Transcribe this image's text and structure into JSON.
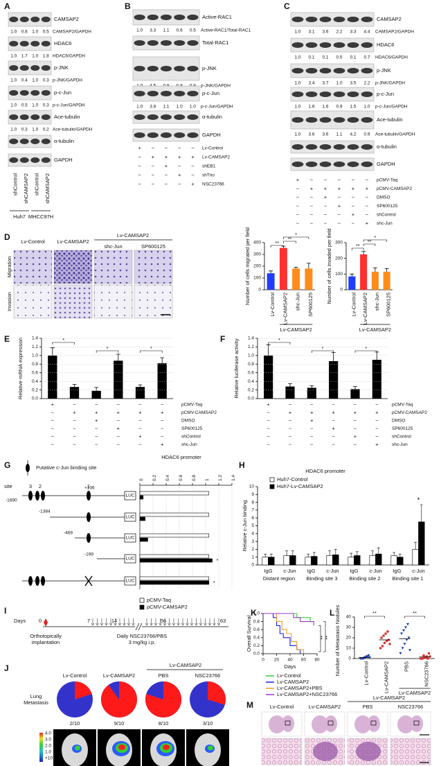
{
  "panels": {
    "A": {
      "letter": "A",
      "blots": [
        {
          "label": "CAMSAP2",
          "quant": [
            "1.0",
            "0.6",
            "1.0",
            "0.5"
          ],
          "ratio": "CAMSAP2/GAPDH"
        },
        {
          "label": "HDAC6",
          "quant": [
            "1.0",
            "1.7",
            "1.0",
            "1.8"
          ],
          "ratio": "HDAC6/GAPDH"
        },
        {
          "label": "p-JNK",
          "quant": [
            "1.0",
            "0.4",
            "1.0",
            "0.3"
          ],
          "ratio": "p-JNK/GAPDH"
        },
        {
          "label": "p-c-Jun",
          "quant": [
            "1.0",
            "0.5",
            "1.0",
            "0.3"
          ],
          "ratio": "p-c-Jun/GAPDH"
        },
        {
          "label": "Ace-tubulin",
          "quant": [
            "1.0",
            "0.3",
            "1.0",
            "0.2"
          ],
          "ratio": "Ace-tubulin/GAPDH"
        },
        {
          "label": "α-tubulin"
        },
        {
          "label": "GAPDH"
        }
      ],
      "lanes": [
        "shControl",
        "shCAMSAP2",
        "shControl",
        "shCAMSAP2"
      ],
      "groups": [
        "Huh7",
        "MHCC97H"
      ]
    },
    "B": {
      "letter": "B",
      "blots": [
        {
          "label": "Active-RAC1",
          "quant": [
            "1.0",
            "3.3",
            "1.1",
            "0.6",
            "0.5"
          ],
          "ratio": "Active-RAC1/Total-RAC1"
        },
        {
          "label": "Total-RAC1"
        },
        {
          "label": "p-JNK",
          "quant": [
            "1.0",
            "4.5",
            "0.9",
            "0.8",
            "0.8"
          ],
          "ratio": "p-JNK/GAPDH"
        },
        {
          "label": "p-c-Jun",
          "quant": [
            "1.0",
            "3.8",
            "1.1",
            "1.0",
            "1.0"
          ],
          "ratio": "p-c-Jun/GAPDH"
        },
        {
          "label": "α-tubulin"
        },
        {
          "label": "GAPDH"
        }
      ],
      "conditions": [
        {
          "label": "Lv-Control",
          "signs": [
            "+",
            "−",
            "−",
            "−",
            "−"
          ]
        },
        {
          "label": "Lv-CAMSAP2",
          "signs": [
            "−",
            "+",
            "+",
            "+",
            "+"
          ]
        },
        {
          "label": "shEB1",
          "signs": [
            "−",
            "−",
            "+",
            "−",
            "−"
          ]
        },
        {
          "label": "shTrio",
          "signs": [
            "−",
            "−",
            "−",
            "+",
            "−"
          ]
        },
        {
          "label": "NSC23766",
          "signs": [
            "−",
            "−",
            "−",
            "−",
            "+"
          ]
        }
      ]
    },
    "C": {
      "letter": "C",
      "blots": [
        {
          "label": "CAMSAP2",
          "quant": [
            "1.0",
            "3.1",
            "3.6",
            "2.2",
            "3.3",
            "4.4"
          ],
          "ratio": "CAMSAP2/GAPDH"
        },
        {
          "label": "HDAC6",
          "quant": [
            "1.0",
            "0.1",
            "0.1",
            "0.5",
            "0.1",
            "0.7"
          ],
          "ratio": "HDAC6/GAPDH"
        },
        {
          "label": "p-JNK",
          "quant": [
            "1.0",
            "3.4",
            "3.7",
            "1.0",
            "3.5",
            "2.2"
          ],
          "ratio": "p-JNK/GAPDH"
        },
        {
          "label": "p-c-Jun",
          "quant": [
            "1.0",
            "1.6",
            "1.6",
            "0.9",
            "1.5",
            "1.0"
          ],
          "ratio": "p-c-Jun/GAPDH"
        },
        {
          "label": "Ace-tubulin",
          "quant": [
            "1.0",
            "3.6",
            "3.6",
            "1.1",
            "4.2",
            "0.9"
          ],
          "ratio": "Ace-tubulin/GAPDH"
        },
        {
          "label": "α-tubulin"
        },
        {
          "label": "GAPDH"
        }
      ],
      "conditions": [
        {
          "label": "pCMV-Taq",
          "signs": [
            "+",
            "−",
            "−",
            "−",
            "−",
            "−"
          ]
        },
        {
          "label": "pCMV-CAMSAP2",
          "signs": [
            "−",
            "+",
            "+",
            "+",
            "+",
            "+"
          ]
        },
        {
          "label": "DMSO",
          "signs": [
            "−",
            "−",
            "+",
            "−",
            "−",
            "−"
          ]
        },
        {
          "label": "SP600125",
          "signs": [
            "−",
            "−",
            "−",
            "+",
            "−",
            "−"
          ]
        },
        {
          "label": "shControl",
          "signs": [
            "−",
            "−",
            "−",
            "−",
            "+",
            "−"
          ]
        },
        {
          "label": "shc-Jun",
          "signs": [
            "−",
            "−",
            "−",
            "−",
            "−",
            "+"
          ]
        }
      ]
    },
    "D": {
      "letter": "D",
      "images": {
        "columns": [
          "Lv-Control",
          "Lv-CAMSAP2",
          "shc-Jun",
          "SP600125"
        ],
        "group": "Lv-CAMSAP2",
        "rows": [
          "Migration",
          "Invasion"
        ]
      },
      "charts": [
        {
          "type": "bar",
          "ylabel": "Number of cells migrated per field",
          "categories": [
            "Lv-Control",
            "Lv-CAMSAP2",
            "shc-Jun",
            "SP600125"
          ],
          "group": "Lv-CAMSAP2",
          "values": [
            140,
            355,
            180,
            180
          ],
          "errors": [
            20,
            15,
            12,
            45
          ],
          "colors": [
            "#1f3cff",
            "#ff3030",
            "#ff8c1a",
            "#ff8c1a"
          ],
          "ylim": [
            0,
            400
          ],
          "yticks": [
            0,
            100,
            200,
            300,
            400
          ],
          "significance": [
            "**",
            "**",
            "*"
          ]
        },
        {
          "type": "bar",
          "ylabel": "Number of cells invaded per field",
          "categories": [
            "Lv-Control",
            "Lv-CAMSAP2",
            "shc-Jun",
            "SP600125"
          ],
          "group": "Lv-CAMSAP2",
          "values": [
            85,
            225,
            115,
            115
          ],
          "errors": [
            15,
            20,
            25,
            20
          ],
          "colors": [
            "#1f3cff",
            "#ff3030",
            "#ff8c1a",
            "#ff8c1a"
          ],
          "ylim": [
            0,
            300
          ],
          "yticks": [
            0,
            100,
            200,
            300
          ],
          "significance": [
            "**",
            "**",
            "*"
          ]
        }
      ]
    },
    "E": {
      "letter": "E",
      "type": "bar",
      "ylabel": "Relative mRNA expression",
      "color": "#000000",
      "values": [
        1.0,
        0.27,
        0.18,
        0.88,
        0.27,
        0.82
      ],
      "errors": [
        0.18,
        0.06,
        0.08,
        0.15,
        0.05,
        0.13
      ],
      "ylim": [
        0,
        1.4
      ],
      "yticks": [
        {
          "value": 0,
          "label": "0.0"
        },
        0.2,
        0.4,
        0.6,
        0.8,
        {
          "value": 1,
          "label": "1.0"
        },
        1.2,
        1.4
      ],
      "significance": [
        "*",
        "*",
        "*"
      ],
      "conditions": [
        {
          "label": "pCMV-Taq",
          "signs": [
            "+",
            "−",
            "−",
            "−",
            "−",
            "−"
          ]
        },
        {
          "label": "pCMV-CAMSAP2",
          "signs": [
            "−",
            "+",
            "+",
            "+",
            "+",
            "+"
          ]
        },
        {
          "label": "DMSO",
          "signs": [
            "−",
            "−",
            "+",
            "−",
            "−",
            "−"
          ]
        },
        {
          "label": "SP600125",
          "signs": [
            "−",
            "−",
            "−",
            "+",
            "−",
            "−"
          ]
        },
        {
          "label": "shControl",
          "signs": [
            "−",
            "−",
            "−",
            "−",
            "+",
            "−"
          ]
        },
        {
          "label": "shc-Jun",
          "signs": [
            "−",
            "−",
            "−",
            "−",
            "−",
            "+"
          ]
        }
      ]
    },
    "F": {
      "letter": "F",
      "type": "bar",
      "ylabel": "Relative  luciferase activity",
      "color": "#000000",
      "values": [
        1.0,
        0.28,
        0.25,
        0.87,
        0.22,
        0.9
      ],
      "errors": [
        0.25,
        0.07,
        0.05,
        0.2,
        0.06,
        0.18
      ],
      "ylim": [
        0,
        1.4
      ],
      "yticks": [
        {
          "value": 0,
          "label": "0.0"
        },
        0.2,
        0.4,
        0.6,
        0.8,
        {
          "value": 1,
          "label": "1.0"
        },
        1.2,
        1.4
      ],
      "significance": [
        "*",
        "*",
        "*"
      ],
      "conditions": [
        {
          "label": "pCMV-Taq",
          "signs": [
            "+",
            "−",
            "−",
            "−",
            "−",
            "−"
          ]
        },
        {
          "label": "pCMV-CAMSAP2",
          "signs": [
            "−",
            "+",
            "+",
            "+",
            "+",
            "+"
          ]
        },
        {
          "label": "DMSO",
          "signs": [
            "−",
            "−",
            "+",
            "−",
            "−",
            "−"
          ]
        },
        {
          "label": "SP600125",
          "signs": [
            "−",
            "−",
            "−",
            "+",
            "−",
            "−"
          ]
        },
        {
          "label": "shControl",
          "signs": [
            "−",
            "−",
            "−",
            "−",
            "+",
            "−"
          ]
        },
        {
          "label": "shc-Jun",
          "signs": [
            "−",
            "−",
            "−",
            "−",
            "−",
            "+"
          ]
        }
      ]
    },
    "G": {
      "letter": "G",
      "title": "HDAC6 promoter",
      "site_legend": "Putative c-Jun binding site",
      "site_labels": [
        "site",
        "3",
        "2",
        "1"
      ],
      "positions": [
        "-1690",
        "+136",
        "-1384",
        "-469",
        "-199"
      ],
      "reporter": "LUC",
      "type": "barh",
      "xlim": [
        0,
        1.4
      ],
      "xticks": [
        0,
        0.2,
        0.4,
        0.6,
        0.8,
        1,
        1.2,
        1.4
      ],
      "series": [
        {
          "name": "pCMV-Taq",
          "color": "#ffffff",
          "values": [
            1.05,
            1.05,
            1.05,
            1.05,
            1.05
          ]
        },
        {
          "name": "pCMV-CAMSAP2",
          "color": "#000000",
          "values": [
            0.05,
            0.08,
            0.12,
            1.1,
            1.05
          ]
        }
      ],
      "significance": [
        "*",
        "*"
      ]
    },
    "H": {
      "letter": "H",
      "title": "HDAC6 promoter",
      "type": "bar",
      "ylabel": "Relative c-Jun binding",
      "categories": [
        "IgG",
        "c-Jun",
        "IgG",
        "c-Jun",
        "IgG",
        "c-Jun",
        "IgG",
        "c-Jun"
      ],
      "groups": [
        "Distant region",
        "Binding site 3",
        "Binding site 2",
        "Binding site 1"
      ],
      "series": [
        {
          "name": "Huh7-Control",
          "color": "#ffffff",
          "values": [
            1.0,
            1.2,
            1.0,
            1.2,
            1.0,
            1.2,
            1.2,
            2.0
          ],
          "errors": [
            0.4,
            0.6,
            0.4,
            0.6,
            0.5,
            0.6,
            0.4,
            0.9
          ]
        },
        {
          "name": "Huh7-Lv-CAMSAP2",
          "color": "#000000",
          "values": [
            1.0,
            1.2,
            1.1,
            1.3,
            1.2,
            1.4,
            1.0,
            5.5
          ],
          "errors": [
            0.4,
            0.6,
            0.5,
            0.7,
            0.5,
            0.8,
            0.4,
            2.2
          ]
        }
      ],
      "ylim": [
        0,
        10
      ],
      "yticks": [
        0,
        1,
        2,
        3,
        4,
        5,
        6,
        7,
        8,
        9,
        10
      ],
      "significance": [
        "*"
      ]
    },
    "I": {
      "letter": "I",
      "days_label": "Days",
      "days": [
        "0",
        "7",
        "14",
        "56",
        "63"
      ],
      "implantation": [
        "Orthotopically",
        "implantation"
      ],
      "treatment": [
        "Daily NSC23766/PBS",
        "3 mg/kg i.p."
      ]
    },
    "J": {
      "letter": "J",
      "row_label": [
        "Lung",
        "Metastasis"
      ],
      "group": "Lv-CAMSAP2",
      "columns": [
        "Lv-Control",
        "Lv-CAMSAP2",
        "PBS",
        "NSC23766"
      ],
      "type": "pie",
      "values": [
        2,
        9,
        8,
        3
      ],
      "mice": 10,
      "value_labels": [
        "2/10",
        "9/10",
        "8/10",
        "3/10"
      ],
      "colors": {
        "metastasis": "#ff1a1a",
        "none": "#3333cc"
      },
      "colorbar": [
        "4.0",
        "3.0",
        "2.0",
        "1.0"
      ],
      "colorbar_unit": "×10⁷"
    },
    "K": {
      "letter": "K",
      "type": "line",
      "xlabel": "Days",
      "ylabel": "Overall Survival",
      "xlim": [
        0,
        80
      ],
      "xticks": [
        0,
        20,
        40,
        60,
        80
      ],
      "ylim": [
        0,
        1
      ],
      "yticks": [
        {
          "value": 0,
          "label": "0.0"
        },
        0.2,
        0.4,
        0.6,
        0.8,
        {
          "value": 1,
          "label": "1.0"
        }
      ],
      "series": [
        {
          "name": "Lv-Control",
          "color": "#33cc33",
          "x": [
            0,
            50,
            70,
            75
          ],
          "values": [
            1.0,
            0.9,
            0.8,
            0.8
          ]
        },
        {
          "name": "Lv-CAMSAP2",
          "color": "#1a1aff",
          "x": [
            0,
            15,
            20,
            25,
            30,
            40,
            50,
            55
          ],
          "values": [
            1.0,
            0.9,
            0.7,
            0.5,
            0.4,
            0.2,
            0.1,
            0
          ]
        },
        {
          "name": "Lv-CAMSAP2+PBS",
          "color": "#f0a020",
          "x": [
            0,
            20,
            28,
            35,
            42,
            50,
            60
          ],
          "values": [
            1.0,
            0.8,
            0.6,
            0.5,
            0.3,
            0.1,
            0
          ]
        },
        {
          "name": "Lv-CAMSAP2+NSC23766",
          "color": "#9933cc",
          "x": [
            0,
            45,
            55,
            65,
            75
          ],
          "values": [
            1.0,
            0.9,
            0.8,
            0.8,
            0.7
          ]
        }
      ],
      "significance": [
        "**",
        "**"
      ]
    },
    "L": {
      "letter": "L",
      "type": "scatter",
      "ylabel": "Number of Metastasis Nodules",
      "categories": [
        "Lv-Control",
        "Lv-CAMSAP2",
        "PBS",
        "NSC23766"
      ],
      "group": "Lv-CAMSAP2",
      "colors": [
        "#1a3aa8",
        "#e03030",
        "#1a3aa8",
        "#e03030"
      ],
      "values": [
        [
          0,
          0,
          1,
          2,
          3,
          0,
          0,
          1,
          2,
          1
        ],
        [
          10,
          12,
          15,
          17,
          18,
          20,
          22,
          24,
          26,
          14
        ],
        [
          5,
          10,
          14,
          18,
          20,
          24,
          27,
          30,
          33,
          8
        ],
        [
          0,
          0,
          1,
          2,
          5,
          0,
          3,
          1,
          0,
          2
        ]
      ],
      "means": [
        1,
        18,
        19,
        1.5
      ],
      "ylim": [
        0,
        40
      ],
      "yticks": [
        0,
        10,
        20,
        30,
        40
      ],
      "significance": [
        "**",
        "**"
      ]
    },
    "M": {
      "letter": "M",
      "columns": [
        "Lv-Control",
        "Lv-CAMSAP2",
        "PBS",
        "NSC23766"
      ],
      "group": "Lv-CAMSAP2"
    }
  }
}
